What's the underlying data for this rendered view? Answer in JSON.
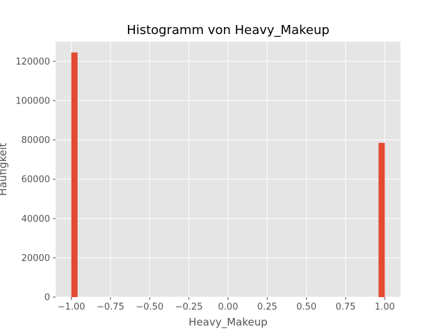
{
  "chart_data": {
    "type": "bar",
    "title": "Histogramm von Heavy_Makeup",
    "xlabel": "Heavy_Makeup",
    "ylabel": "Häufigkeit",
    "xlim": [
      -1.1,
      1.1
    ],
    "ylim": [
      0,
      130000
    ],
    "x_ticks": [
      -1.0,
      -0.75,
      -0.5,
      -0.25,
      0.0,
      0.25,
      0.5,
      0.75,
      1.0
    ],
    "x_tick_labels": [
      "−1.00",
      "−0.75",
      "−0.50",
      "−0.25",
      "0.00",
      "0.25",
      "0.50",
      "0.75",
      "1.00"
    ],
    "y_ticks": [
      0,
      20000,
      40000,
      60000,
      80000,
      100000,
      120000
    ],
    "y_tick_labels": [
      "0",
      "20000",
      "40000",
      "60000",
      "80000",
      "100000",
      "120000"
    ],
    "bins": [
      {
        "x_start": -1.0,
        "x_end": -0.96,
        "value": 124500
      },
      {
        "x_start": 0.96,
        "x_end": 1.0,
        "value": 78500
      }
    ],
    "grid": true,
    "style": "ggplot",
    "colors": {
      "bar": "#E24A33",
      "plot_background": "#E5E5E5",
      "grid": "#FFFFFF",
      "tick_text": "#555555",
      "title_text": "#000000"
    }
  }
}
